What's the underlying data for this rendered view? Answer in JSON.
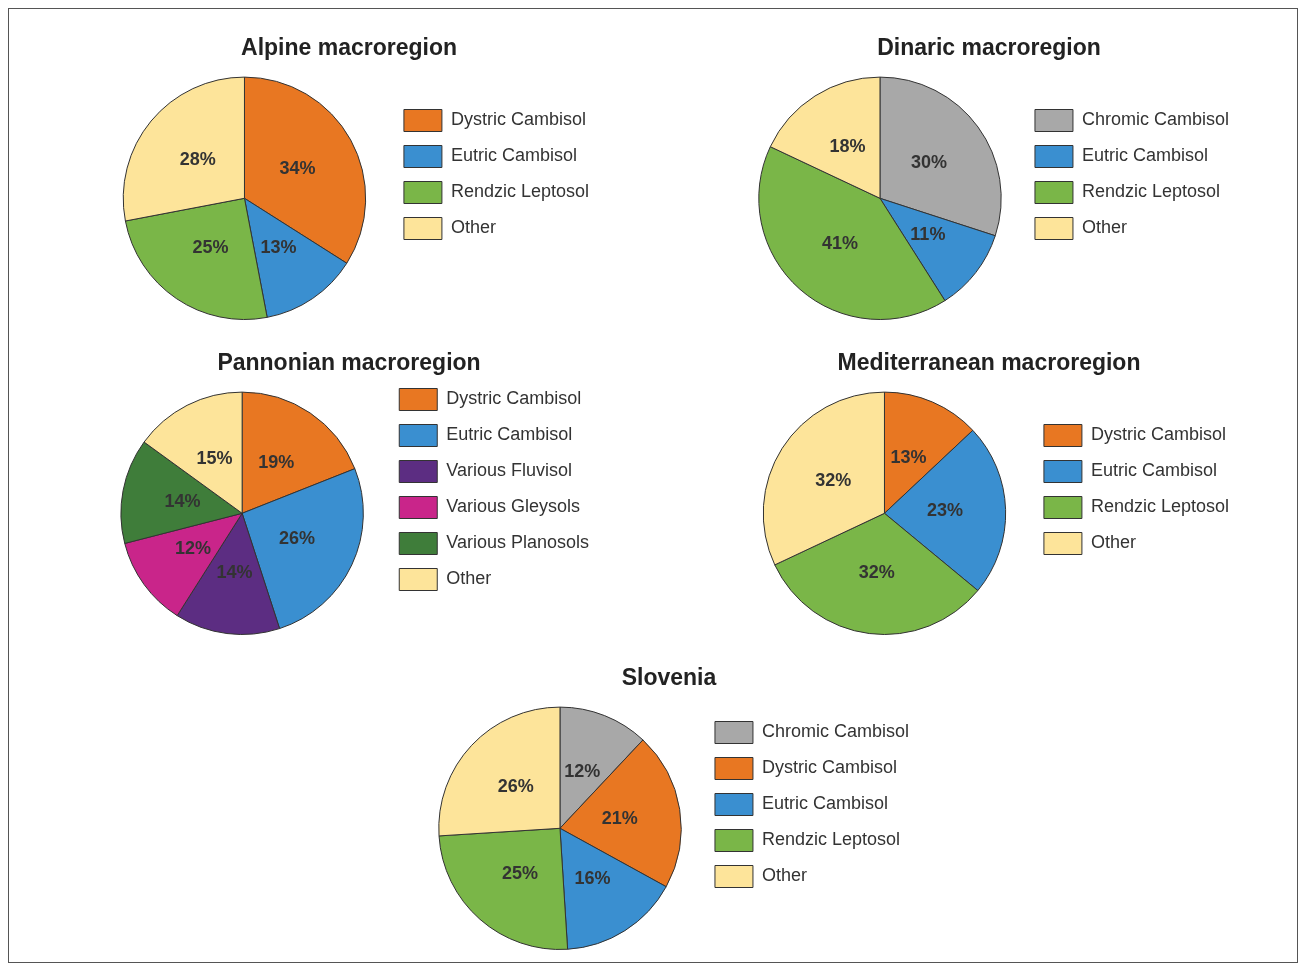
{
  "chart_data": [
    {
      "type": "pie",
      "title": "Alpine macroregion",
      "categories": [
        "Dystric Cambisol",
        "Eutric Cambisol",
        "Rendzic Leptosol",
        "Other"
      ],
      "values": [
        34,
        13,
        25,
        28
      ],
      "colors": [
        "#e87722",
        "#3a8fd0",
        "#7ab648",
        "#fde49a"
      ],
      "value_labels": [
        "34%",
        "13%",
        "25%",
        "28%"
      ],
      "legend": "right"
    },
    {
      "type": "pie",
      "title": "Dinaric macroregion",
      "categories": [
        "Chromic Cambisol",
        "Eutric Cambisol",
        "Rendzic Leptosol",
        "Other"
      ],
      "values": [
        30,
        11,
        41,
        18
      ],
      "colors": [
        "#a8a8a8",
        "#3a8fd0",
        "#7ab648",
        "#fde49a"
      ],
      "value_labels": [
        "30%",
        "11%",
        "41%",
        "18%"
      ],
      "legend": "right"
    },
    {
      "type": "pie",
      "title": "Pannonian macroregion",
      "categories": [
        "Dystric Cambisol",
        "Eutric Cambisol",
        "Various Fluvisol",
        "Various Gleysols",
        "Various Planosols",
        "Other"
      ],
      "values": [
        19,
        26,
        14,
        12,
        14,
        15
      ],
      "colors": [
        "#e87722",
        "#3a8fd0",
        "#5c2d82",
        "#c9258a",
        "#3f7d3a",
        "#fde49a"
      ],
      "value_labels": [
        "19%",
        "26%",
        "14%",
        "12%",
        "14%",
        "15%"
      ],
      "legend": "right"
    },
    {
      "type": "pie",
      "title": "Mediterranean macroregion",
      "categories": [
        "Dystric Cambisol",
        "Eutric Cambisol",
        "Rendzic Leptosol",
        "Other"
      ],
      "values": [
        13,
        23,
        32,
        32
      ],
      "colors": [
        "#e87722",
        "#3a8fd0",
        "#7ab648",
        "#fde49a"
      ],
      "value_labels": [
        "13%",
        "23%",
        "32%",
        "32%"
      ],
      "legend": "right"
    },
    {
      "type": "pie",
      "title": "Slovenia",
      "categories": [
        "Chromic Cambisol",
        "Dystric Cambisol",
        "Eutric Cambisol",
        "Rendzic Leptosol",
        "Other"
      ],
      "values": [
        12,
        21,
        16,
        25,
        26
      ],
      "colors": [
        "#a8a8a8",
        "#e87722",
        "#3a8fd0",
        "#7ab648",
        "#fde49a"
      ],
      "value_labels": [
        "12%",
        "21%",
        "16%",
        "25%",
        "26%"
      ],
      "legend": "right"
    }
  ]
}
